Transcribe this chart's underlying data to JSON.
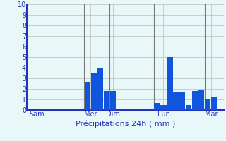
{
  "title": "Précipitations 24h ( mm )",
  "bar_color": "#1155dd",
  "background_color": "#e8f8f8",
  "grid_color": "#bbbbbb",
  "axis_label_color": "#2233bb",
  "ylim": [
    0,
    10
  ],
  "yticks": [
    0,
    1,
    2,
    3,
    4,
    5,
    6,
    7,
    8,
    9,
    10
  ],
  "day_labels": [
    "Sam",
    "Mer",
    "Dim",
    "Lun",
    "Mar"
  ],
  "day_line_positions": [
    0,
    9,
    13,
    20,
    28
  ],
  "day_tick_positions": [
    1,
    9.5,
    13,
    21,
    28.5
  ],
  "values": [
    0,
    0,
    0,
    0,
    0,
    0,
    0,
    0,
    0,
    2.6,
    3.5,
    4.0,
    1.8,
    1.8,
    0,
    0,
    0,
    0,
    0,
    0,
    0.7,
    0.5,
    5.0,
    1.7,
    1.7,
    0.5,
    1.8,
    1.9,
    1.1,
    1.2,
    0
  ],
  "num_bars": 31,
  "figwidth": 3.2,
  "figheight": 2.0,
  "dpi": 100
}
